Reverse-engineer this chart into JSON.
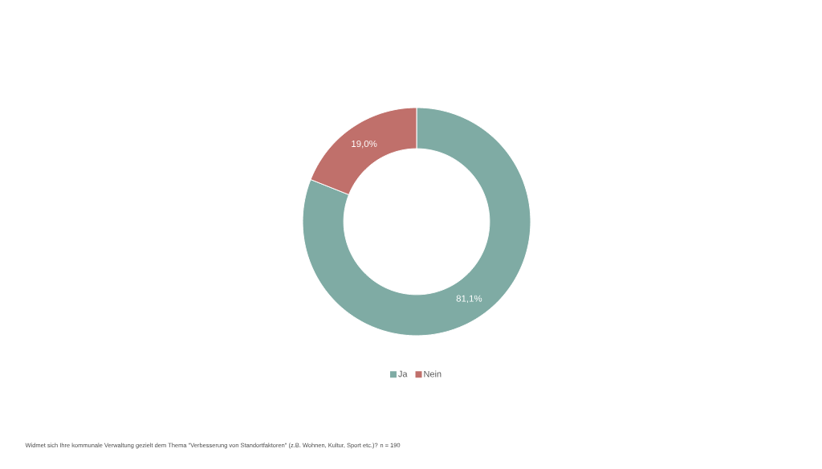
{
  "chart_data": {
    "type": "donut",
    "categories": [
      "Ja",
      "Nein"
    ],
    "values": [
      81.1,
      19.0
    ],
    "colors": [
      "#7faba4",
      "#c0706b"
    ],
    "value_labels": [
      "81,1%",
      "19,0%"
    ],
    "legend": "bottom",
    "annotations": [
      "Widmet sich Ihre kommunale Verwaltung gezielt dem Thema \"Verbesserung von Standortfaktoren\" (z.B. Wohnen, Kultur, Sport etc.)? n = 190"
    ]
  }
}
